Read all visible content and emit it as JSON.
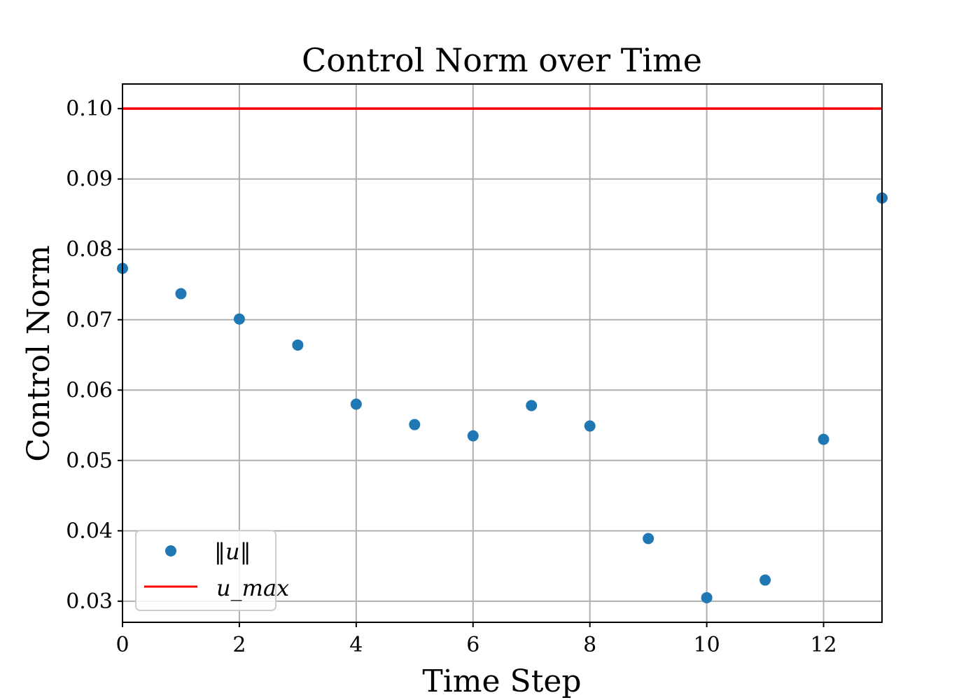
{
  "chart_data": {
    "type": "scatter",
    "title": "Control Norm over Time",
    "xlabel": "Time Step",
    "ylabel": "Control Norm",
    "xlim": [
      0,
      13
    ],
    "ylim": [
      0.027,
      0.1035
    ],
    "xticks": [
      0,
      2,
      4,
      6,
      8,
      10,
      12
    ],
    "xtick_labels": [
      "0",
      "2",
      "4",
      "6",
      "8",
      "10",
      "12"
    ],
    "yticks": [
      0.03,
      0.04,
      0.05,
      0.06,
      0.07,
      0.08,
      0.09,
      0.1
    ],
    "ytick_labels": [
      "0.03",
      "0.04",
      "0.05",
      "0.06",
      "0.07",
      "0.08",
      "0.09",
      "0.10"
    ],
    "grid": true,
    "legend_position": "lower-left",
    "series": [
      {
        "name": "‖u‖",
        "kind": "scatter",
        "color": "#1f77b4",
        "x": [
          0,
          1,
          2,
          3,
          4,
          5,
          6,
          7,
          8,
          9,
          10,
          11,
          12,
          13
        ],
        "y": [
          0.0773,
          0.0737,
          0.0701,
          0.0664,
          0.058,
          0.0551,
          0.0535,
          0.0578,
          0.0549,
          0.0389,
          0.0305,
          0.033,
          0.053,
          0.0873
        ]
      },
      {
        "name": "u_max",
        "kind": "hline",
        "color": "#ff0000",
        "y": 0.1
      }
    ]
  }
}
